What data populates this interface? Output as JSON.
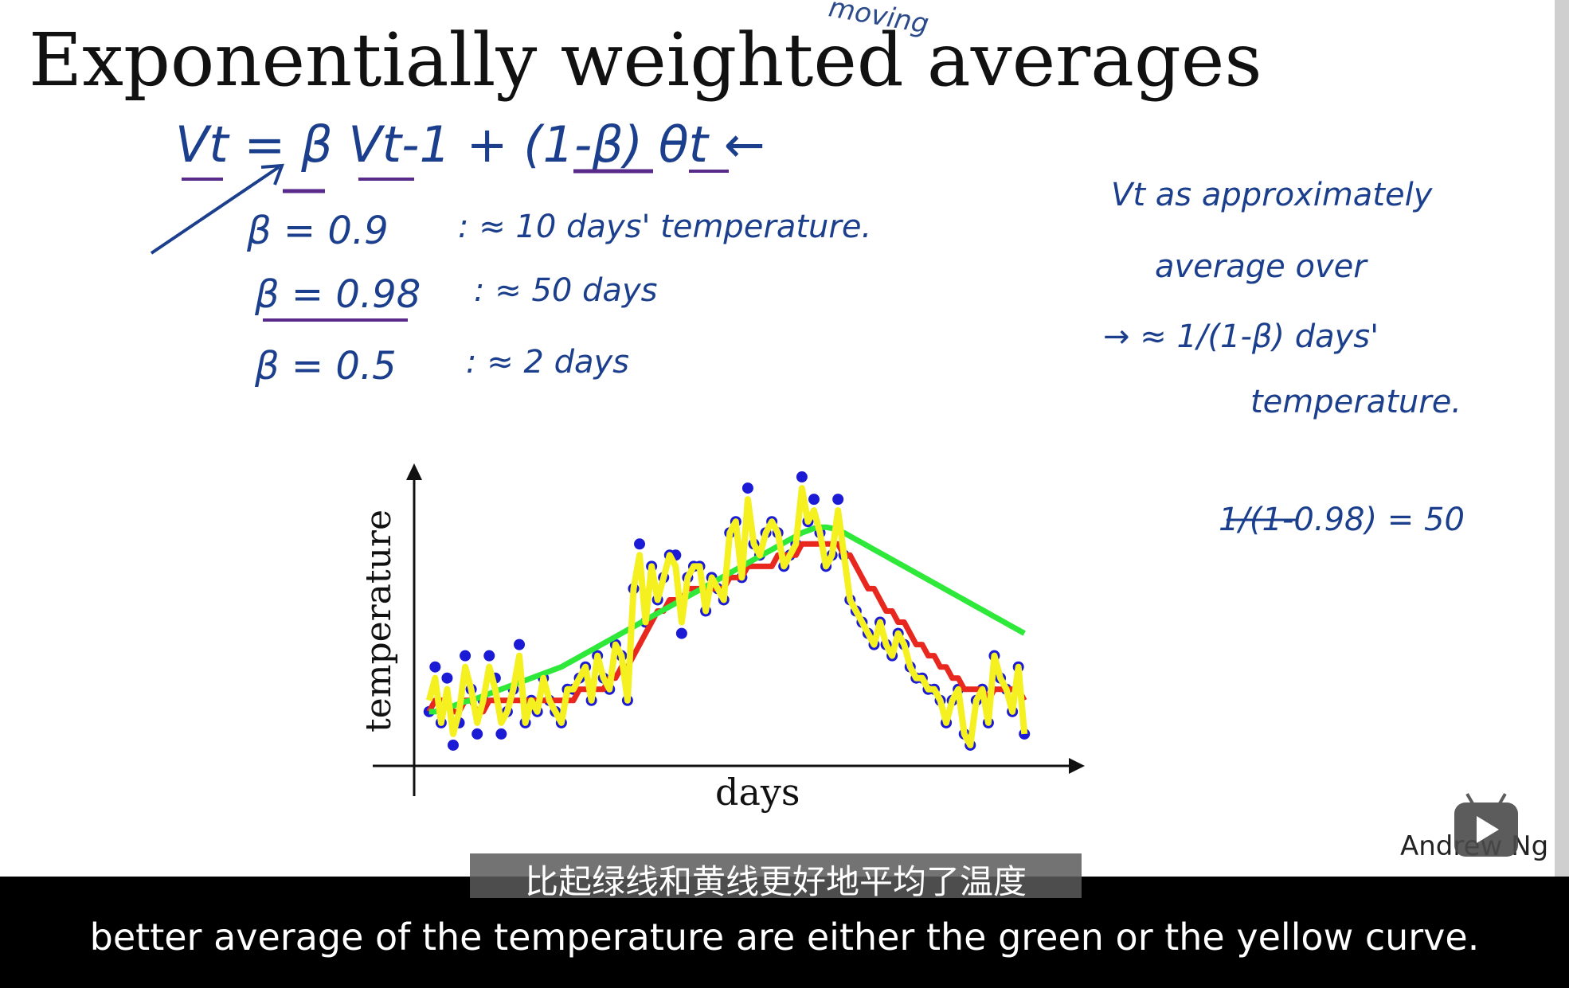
{
  "slide": {
    "title": "Exponentially weighted averages",
    "title_note": "moving",
    "equation": {
      "main": "Vt = β Vt-1 + (1-β) θt ←",
      "rows": [
        {
          "beta": "β = 0.9",
          "approx": ": ≈ 10 days' temperature."
        },
        {
          "beta": "β = 0.98",
          "approx": ": ≈ 50 days"
        },
        {
          "beta": "β = 0.5",
          "approx": ": ≈ 2 days"
        }
      ]
    },
    "side_notes": {
      "line1": "Vt as approximately",
      "line2": "average over",
      "line3": "→ ≈ 1/(1-β) days'",
      "line4": "temperature.",
      "calc": "1/(1-0.98) = 50"
    },
    "author": "Andrew Ng"
  },
  "chart_data": {
    "type": "scatter",
    "xlabel": "days",
    "ylabel": "temperature",
    "x": [
      1,
      3,
      5,
      7,
      9,
      11,
      13,
      15,
      17,
      19,
      21,
      23,
      25,
      27,
      29,
      31,
      33,
      35,
      37,
      39,
      41,
      43,
      45,
      47,
      49,
      51,
      53,
      55,
      57,
      59,
      61,
      63,
      65,
      67,
      69,
      71,
      73,
      75,
      77,
      79,
      81,
      83,
      85,
      87,
      89,
      91,
      93,
      95,
      97,
      99,
      101,
      103,
      105,
      107,
      109,
      111,
      113,
      115,
      117,
      119,
      121,
      123,
      125,
      127,
      129,
      131,
      133,
      135,
      137,
      139,
      141,
      143,
      145,
      147,
      149,
      151,
      153,
      155,
      157,
      159,
      161,
      163,
      165,
      167,
      169,
      171,
      173,
      175,
      177,
      179,
      181,
      183,
      185,
      187,
      189,
      191,
      193,
      195,
      197,
      199
    ],
    "series": [
      {
        "name": "",
        "color": "#1b1bd6",
        "values": [
          4,
          8,
          3,
          7,
          1,
          3,
          9,
          6,
          2,
          5,
          9,
          7,
          2,
          4,
          6,
          10,
          3,
          5,
          4,
          7,
          5,
          4,
          3,
          6,
          6,
          7,
          8,
          5,
          9,
          7,
          6,
          10,
          9,
          5,
          15,
          19,
          12,
          17,
          14,
          16,
          18,
          18,
          11,
          16,
          17,
          17,
          13,
          16,
          15,
          14,
          20,
          21,
          16,
          24,
          19,
          18,
          20,
          21,
          20,
          17,
          18,
          19,
          25,
          21,
          23,
          20,
          17,
          18,
          23,
          18,
          14,
          13,
          12,
          11,
          10,
          12,
          10,
          9,
          11,
          10,
          8,
          7,
          7,
          6,
          6,
          5,
          3,
          5,
          6,
          2,
          1,
          5,
          6,
          3,
          9,
          7,
          6,
          4,
          8,
          2
        ]
      },
      {
        "name": "",
        "color": "#e8281e",
        "values": [
          4,
          5,
          5,
          5,
          4,
          4,
          5,
          5,
          4,
          4,
          5,
          5,
          5,
          5,
          5,
          5,
          5,
          5,
          5,
          5,
          5,
          5,
          5,
          5,
          5,
          6,
          6,
          6,
          6,
          6,
          7,
          7,
          8,
          8,
          9,
          10,
          11,
          12,
          13,
          13,
          14,
          14,
          14,
          15,
          15,
          15,
          15,
          15,
          15,
          15,
          16,
          16,
          16,
          17,
          17,
          17,
          17,
          17,
          18,
          18,
          18,
          18,
          19,
          19,
          19,
          19,
          19,
          19,
          19,
          18,
          18,
          17,
          16,
          15,
          15,
          14,
          13,
          13,
          12,
          12,
          11,
          10,
          10,
          9,
          9,
          8,
          8,
          7,
          7,
          6,
          6,
          6,
          6,
          5,
          6,
          6,
          6,
          6,
          6,
          5
        ]
      },
      {
        "name": "",
        "color": "#2ee83a",
        "values": [
          4,
          4,
          4.2,
          4.4,
          4.5,
          4.7,
          4.9,
          5,
          5.2,
          5.4,
          5.6,
          5.8,
          6,
          6.2,
          6.4,
          6.6,
          6.8,
          7,
          7.2,
          7.4,
          7.6,
          7.8,
          8,
          8.3,
          8.6,
          8.9,
          9.2,
          9.5,
          9.8,
          10.1,
          10.4,
          10.7,
          11,
          11.3,
          11.6,
          11.9,
          12.2,
          12.5,
          12.8,
          13.1,
          13.4,
          13.7,
          14,
          14.3,
          14.6,
          14.9,
          15.2,
          15.5,
          15.8,
          16.1,
          16.4,
          16.7,
          17,
          17.3,
          17.6,
          17.9,
          18.2,
          18.5,
          18.8,
          19.1,
          19.4,
          19.7,
          20,
          20.2,
          20.4,
          20.5,
          20.5,
          20.4,
          20.2,
          20,
          19.7,
          19.4,
          19.1,
          18.8,
          18.5,
          18.2,
          17.9,
          17.6,
          17.3,
          17,
          16.7,
          16.4,
          16.1,
          15.8,
          15.5,
          15.2,
          14.9,
          14.6,
          14.3,
          14,
          13.7,
          13.4,
          13.1,
          12.8,
          12.5,
          12.2,
          11.9,
          11.6,
          11.3,
          11
        ]
      },
      {
        "name": "",
        "color": "#f5f020",
        "values": [
          5,
          7,
          3,
          6,
          2,
          4,
          8,
          6,
          3,
          5,
          8,
          6,
          3,
          4,
          6,
          9,
          3,
          5,
          4,
          7,
          5,
          4,
          3,
          6,
          6,
          7,
          8,
          5,
          9,
          7,
          6,
          10,
          9,
          5,
          15,
          18,
          12,
          17,
          14,
          16,
          18,
          17,
          12,
          16,
          17,
          17,
          13,
          16,
          15,
          14,
          20,
          21,
          16,
          23,
          19,
          18,
          20,
          21,
          20,
          17,
          18,
          19,
          24,
          21,
          22,
          20,
          17,
          18,
          22,
          18,
          14,
          13,
          12,
          11,
          10,
          12,
          10,
          9,
          11,
          10,
          8,
          7,
          7,
          6,
          6,
          5,
          3,
          5,
          6,
          2,
          1,
          5,
          6,
          3,
          9,
          7,
          6,
          4,
          8,
          2
        ]
      }
    ],
    "ylim": [
      0,
      26
    ],
    "xlim": [
      0,
      200
    ]
  },
  "subtitles": {
    "chinese": "比起绿线和黄线更好地平均了温度",
    "english": "better average of the temperature are either the green or the yellow curve."
  }
}
